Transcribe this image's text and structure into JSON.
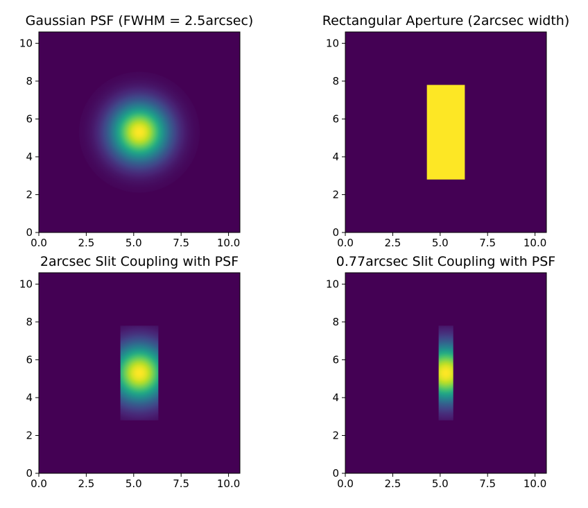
{
  "figure": {
    "colors": {
      "background": "#440154",
      "frame": "#000000"
    },
    "colormap": "viridis"
  },
  "chart_data": [
    {
      "type": "heatmap",
      "title": "Gaussian PSF (FWHM = 2.5arcsec)",
      "content": "gaussian",
      "xlim": [
        0,
        10.6
      ],
      "ylim": [
        0,
        10.6
      ],
      "xticks": [
        "0.0",
        "2.5",
        "5.0",
        "7.5",
        "10.0"
      ],
      "yticks": [
        "0",
        "2",
        "4",
        "6",
        "8",
        "10"
      ],
      "center": [
        5.3,
        5.3
      ],
      "fwhm": 2.5
    },
    {
      "type": "heatmap",
      "title": "Rectangular Aperture (2arcsec width)",
      "content": "aperture",
      "xlim": [
        0,
        10.6
      ],
      "ylim": [
        0,
        10.6
      ],
      "xticks": [
        "0.0",
        "2.5",
        "5.0",
        "7.5",
        "10.0"
      ],
      "yticks": [
        "0",
        "2",
        "4",
        "6",
        "8",
        "10"
      ],
      "aperture": {
        "x": [
          4.3,
          6.3
        ],
        "y": [
          2.8,
          7.8
        ]
      }
    },
    {
      "type": "heatmap",
      "title": "2arcsec Slit Coupling with PSF",
      "content": "coupled",
      "xlim": [
        0,
        10.6
      ],
      "ylim": [
        0,
        10.6
      ],
      "xticks": [
        "0.0",
        "2.5",
        "5.0",
        "7.5",
        "10.0"
      ],
      "yticks": [
        "0",
        "2",
        "4",
        "6",
        "8",
        "10"
      ],
      "center": [
        5.3,
        5.3
      ],
      "fwhm": 2.5,
      "aperture": {
        "x": [
          4.3,
          6.3
        ],
        "y": [
          2.8,
          7.8
        ]
      }
    },
    {
      "type": "heatmap",
      "title": "0.77arcsec Slit Coupling with PSF",
      "content": "coupled",
      "xlim": [
        0,
        10.6
      ],
      "ylim": [
        0,
        10.6
      ],
      "xticks": [
        "0.0",
        "2.5",
        "5.0",
        "7.5",
        "10.0"
      ],
      "yticks": [
        "0",
        "2",
        "4",
        "6",
        "8",
        "10"
      ],
      "center": [
        5.3,
        5.3
      ],
      "fwhm": 2.5,
      "aperture": {
        "x": [
          4.92,
          5.69
        ],
        "y": [
          2.8,
          7.8
        ]
      }
    }
  ]
}
